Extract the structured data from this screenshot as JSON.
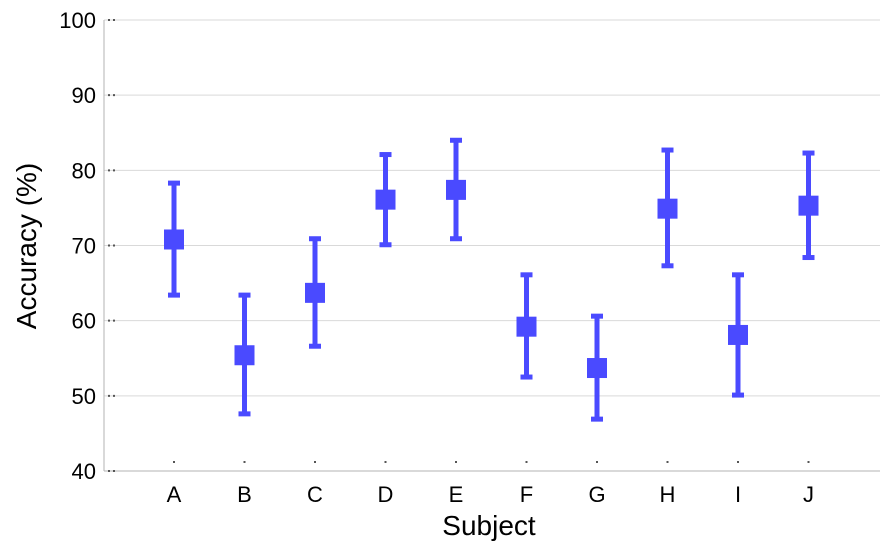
{
  "chart_data": {
    "type": "scatter",
    "title": "",
    "xlabel": "Subject",
    "ylabel": "Accuracy (%)",
    "ylim": [
      40,
      100
    ],
    "yticks": [
      40,
      50,
      60,
      70,
      80,
      90,
      100
    ],
    "grid": true,
    "categories": [
      "A",
      "B",
      "C",
      "D",
      "E",
      "F",
      "G",
      "H",
      "I",
      "J"
    ],
    "series": [
      {
        "values": [
          70.8,
          55.4,
          63.7,
          76.1,
          77.4,
          59.2,
          53.7,
          74.9,
          58.1,
          75.3
        ],
        "lower": [
          63.4,
          47.6,
          56.6,
          70.1,
          70.9,
          52.5,
          46.9,
          67.3,
          50.1,
          68.4
        ],
        "upper": [
          78.3,
          63.4,
          70.9,
          82.1,
          84.0,
          66.1,
          60.6,
          82.7,
          66.1,
          82.3
        ]
      }
    ],
    "marker_color": "#4a4aff"
  }
}
